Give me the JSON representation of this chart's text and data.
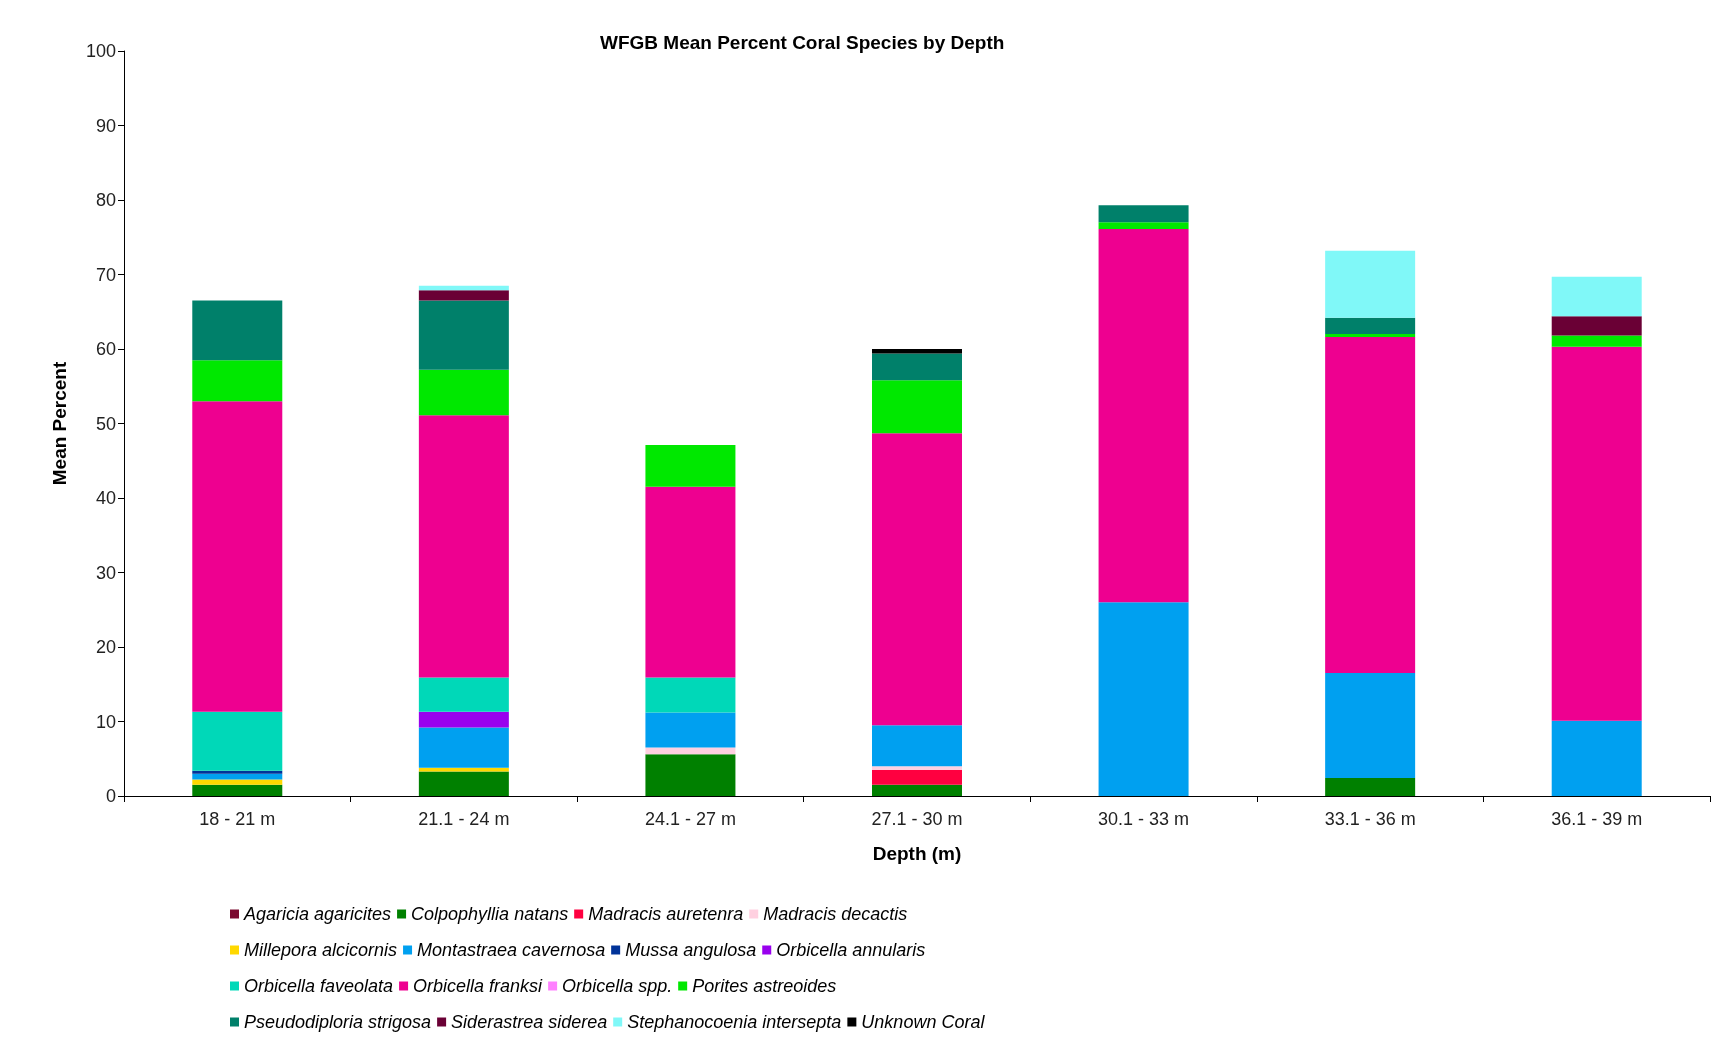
{
  "chart_data": {
    "type": "bar",
    "stacked": true,
    "title": "WFGB Mean Percent Coral Species by Depth",
    "xlabel": "Depth (m)",
    "ylabel": "Mean Percent",
    "categories": [
      "18 - 21 m",
      "21.1 - 24 m",
      "24.1 - 27 m",
      "27.1 - 30 m",
      "30.1 - 33 m",
      "33.1 - 36 m",
      "36.1 - 39 m"
    ],
    "ylim": [
      0,
      100
    ],
    "yticks": [
      0,
      10,
      20,
      30,
      40,
      50,
      60,
      70,
      80,
      90,
      100
    ],
    "grid": false,
    "legend": "bottom",
    "series": [
      {
        "name": "Agaricia agaricites",
        "color": "#7b0a2f",
        "values": [
          null,
          null,
          null,
          null,
          null,
          null,
          null
        ]
      },
      {
        "name": "Colpophyllia natans",
        "color": "#008000",
        "values": [
          1.5,
          3.3,
          5.6,
          1.5,
          null,
          2.4,
          null
        ]
      },
      {
        "name": "Madracis auretenra",
        "color": "#ff0040",
        "values": [
          null,
          null,
          null,
          2.0,
          null,
          null,
          null
        ]
      },
      {
        "name": "Madracis decactis",
        "color": "#ffd0e0",
        "values": [
          null,
          null,
          0.9,
          0.5,
          null,
          null,
          null
        ]
      },
      {
        "name": "Millepora alcicornis",
        "color": "#ffd800",
        "values": [
          0.7,
          0.5,
          null,
          null,
          null,
          null,
          null
        ]
      },
      {
        "name": "Montastraea cavernosa",
        "color": "#00a0f0",
        "values": [
          0.8,
          5.4,
          4.7,
          5.5,
          26.0,
          14.1,
          10.1
        ]
      },
      {
        "name": "Mussa angulosa",
        "color": "#003399",
        "values": [
          0.4,
          null,
          null,
          null,
          null,
          null,
          null
        ]
      },
      {
        "name": "Orbicella annularis",
        "color": "#9900ee",
        "values": [
          null,
          2.1,
          null,
          null,
          null,
          null,
          null
        ]
      },
      {
        "name": "Orbicella faveolata",
        "color": "#00d8b8",
        "values": [
          7.9,
          4.6,
          4.7,
          null,
          null,
          null,
          null
        ]
      },
      {
        "name": "Orbicella franksi",
        "color": "#ee0090",
        "values": [
          41.7,
          35.2,
          25.6,
          39.2,
          50.1,
          45.1,
          50.2
        ]
      },
      {
        "name": "Orbicella spp.",
        "color": "#ff80ff",
        "values": [
          null,
          null,
          null,
          null,
          null,
          null,
          null
        ]
      },
      {
        "name": "Porites astreoides",
        "color": "#00e800",
        "values": [
          5.5,
          6.1,
          5.6,
          7.1,
          0.9,
          0.4,
          1.5
        ]
      },
      {
        "name": "Pseudodiploria strigosa",
        "color": "#00806a",
        "values": [
          8.0,
          9.3,
          null,
          3.6,
          2.3,
          2.2,
          null
        ]
      },
      {
        "name": "Siderastrea siderea",
        "color": "#6a0035",
        "values": [
          null,
          1.4,
          null,
          null,
          null,
          null,
          2.6
        ]
      },
      {
        "name": "Stephanocoenia intersepta",
        "color": "#80f8f8",
        "values": [
          null,
          0.6,
          null,
          null,
          null,
          9.0,
          5.3
        ]
      },
      {
        "name": "Unknown Coral",
        "color": "#000000",
        "values": [
          null,
          null,
          null,
          0.6,
          null,
          null,
          null
        ]
      }
    ]
  }
}
